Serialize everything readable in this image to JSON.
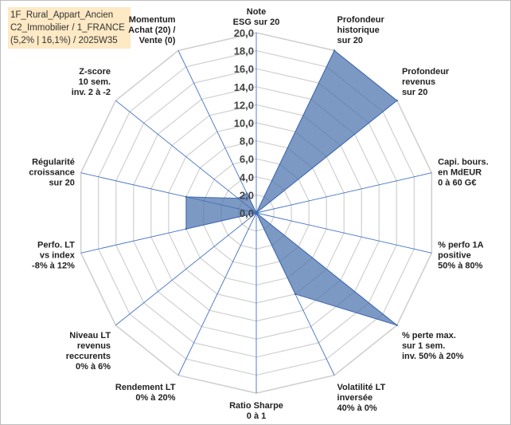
{
  "title_box": {
    "line1": "1F_Rural_Appart_Ancien",
    "line2": "C2_Immobilier / 1_FRANCE",
    "line3": "(5,2% | 16,1%) / 2025W35"
  },
  "colors": {
    "fill": "#4a72ad",
    "stroke": "#3f6bb0",
    "grid": "#d0d0d0",
    "spoke": "#4472c4",
    "title_bg": "#fde9c4"
  },
  "chart_data": {
    "type": "radar",
    "title": "",
    "rmax": 20,
    "ticks": [
      "0,0",
      "2,0",
      "4,0",
      "6,0",
      "8,0",
      "10,0",
      "12,0",
      "14,0",
      "16,0",
      "18,0",
      "20,0"
    ],
    "categories": [
      [
        "Note",
        "ESG sur 20"
      ],
      [
        "Profondeur",
        "historique",
        "sur 20"
      ],
      [
        "Profondeur",
        "revenus",
        "sur 20"
      ],
      [
        "Capi. bours.",
        "en MdEUR",
        "0 à 60 G€"
      ],
      [
        "% perfo 1A",
        "positive",
        "50% à 80%"
      ],
      [
        "% perte max.",
        "sur 1 sem.",
        "inv. 50% à 20%"
      ],
      [
        "Volatilité LT",
        "inversée",
        "40% à 0%"
      ],
      [
        "Ratio Sharpe",
        "0 à 1"
      ],
      [
        "Rendement LT",
        "0% à 20%"
      ],
      [
        "Niveau LT",
        "revenus",
        "reccurents",
        "0% à 6%"
      ],
      [
        "Perfo. LT",
        "vs index",
        "-8% à 12%"
      ],
      [
        "Régularité",
        "croissance",
        "sur 20"
      ],
      [
        "Z-score",
        "10 sem.",
        "inv. 2 à -2"
      ],
      [
        "Momentum",
        "Achat (20) /",
        "Vente (0)"
      ]
    ],
    "series": [
      {
        "values": [
          0,
          20,
          20,
          0,
          0,
          20,
          10,
          0,
          0,
          0,
          8,
          8,
          2.6,
          2.4
        ]
      }
    ]
  }
}
